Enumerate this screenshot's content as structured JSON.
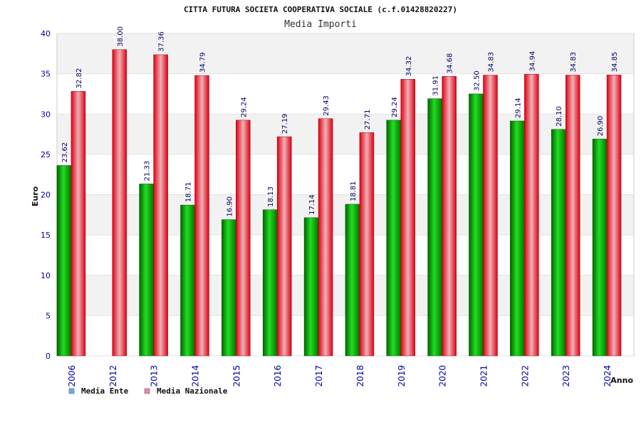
{
  "chart_data": {
    "type": "bar",
    "title": "CITTA FUTURA SOCIETA COOPERATIVA SOCIALE (c.f.01428820227)",
    "subtitle": "Media Importi",
    "xlabel": "Anno",
    "ylabel": "Euro",
    "ylim": [
      0,
      40
    ],
    "yticks": [
      "0",
      "5",
      "10",
      "15",
      "20",
      "25",
      "30",
      "35",
      "40"
    ],
    "grid": true,
    "legend_position": "bottom-left",
    "categories": [
      "2006",
      "2012",
      "2013",
      "2014",
      "2015",
      "2016",
      "2017",
      "2018",
      "2019",
      "2020",
      "2021",
      "2022",
      "2023",
      "2024"
    ],
    "series": [
      {
        "name": "Media Ente",
        "color": "#00aa00",
        "legend_color": "#66aaee",
        "values": [
          23.62,
          null,
          21.33,
          18.71,
          16.9,
          18.13,
          17.14,
          18.81,
          29.24,
          31.91,
          32.5,
          29.14,
          28.1,
          26.9
        ],
        "labels": [
          "23.62",
          "",
          "21.33",
          "18.71",
          "16.90",
          "18.13",
          "17.14",
          "18.81",
          "29.24",
          "31.91",
          "32.50",
          "29.14",
          "28.10",
          "26.90"
        ]
      },
      {
        "name": "Media Nazionale",
        "color": "#ee1122",
        "legend_color": "#ee88aa",
        "values": [
          32.82,
          38.0,
          37.36,
          34.79,
          29.24,
          27.19,
          29.43,
          27.71,
          34.32,
          34.68,
          34.83,
          34.94,
          34.83,
          34.85
        ],
        "labels": [
          "32.82",
          "38.00",
          "37.36",
          "34.79",
          "29.24",
          "27.19",
          "29.43",
          "27.71",
          "34.32",
          "34.68",
          "34.83",
          "34.94",
          "34.83",
          "34.85"
        ]
      }
    ]
  }
}
